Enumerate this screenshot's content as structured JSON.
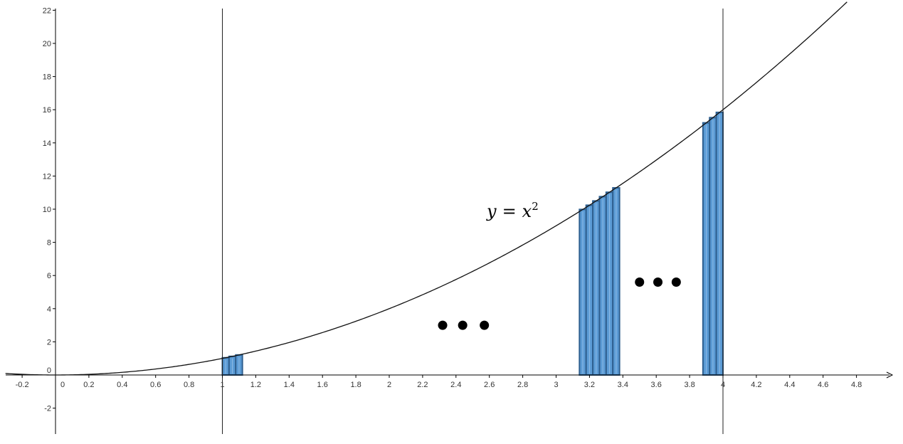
{
  "chart_data": {
    "type": "area",
    "function": "x^2",
    "curve_label": {
      "lhs": "y",
      "eq": "=",
      "base": "x",
      "exp": "2"
    },
    "xlim": [
      -0.3,
      5.0
    ],
    "ylim": [
      -3.5,
      22.5
    ],
    "x_ticks": [
      "-0.2",
      "0",
      "0.2",
      "0.4",
      "0.6",
      "0.8",
      "1",
      "1.2",
      "1.4",
      "1.6",
      "1.8",
      "2",
      "2.2",
      "2.4",
      "2.6",
      "2.8",
      "3",
      "3.2",
      "3.4",
      "3.6",
      "3.8",
      "4",
      "4.2",
      "4.4",
      "4.6",
      "4.8"
    ],
    "y_ticks": [
      "-2",
      "0",
      "2",
      "4",
      "6",
      "8",
      "10",
      "12",
      "14",
      "16",
      "18",
      "20",
      "22"
    ],
    "vertical_lines": [
      1,
      4
    ],
    "rectangles": {
      "width": 0.04,
      "group1_x": [
        1.0,
        1.04,
        1.08
      ],
      "group2_x": [
        3.14,
        3.18,
        3.22,
        3.26,
        3.3,
        3.34
      ],
      "group3_x": [
        3.88,
        3.92,
        3.96
      ]
    },
    "ellipses": [
      {
        "x": [
          2.32,
          2.44,
          2.57
        ],
        "y": 3.0
      },
      {
        "x": [
          3.5,
          3.61,
          3.72
        ],
        "y": 5.6
      }
    ],
    "colors": {
      "bar_fill": "#5b9bd5",
      "bar_stroke": "#2e5f8f",
      "curve": "#111111",
      "axis": "#000000"
    },
    "grid": false
  }
}
